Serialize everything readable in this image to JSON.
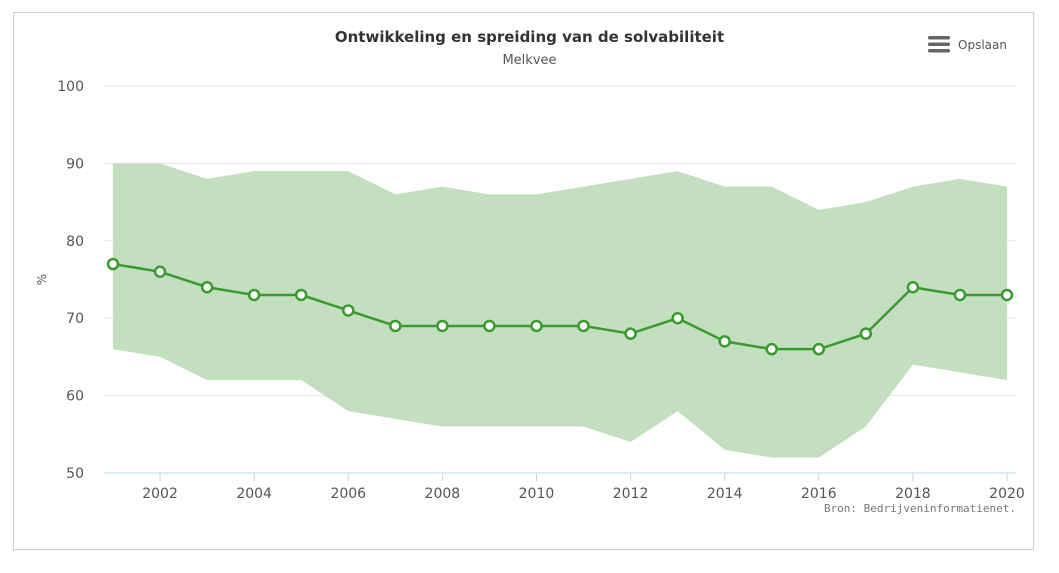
{
  "menu": {
    "label": "Opslaan",
    "icon": "hamburger-menu-icon"
  },
  "source_label": "Bron: Bedrijveninformatienet.",
  "colors": {
    "band": "#c3dfc0",
    "line": "#3a9a2f",
    "grid": "#e6e6e6",
    "axis": "#c0d4e4"
  },
  "chart_data": {
    "type": "line",
    "title": "Ontwikkeling en spreiding van de solvabiliteit",
    "subtitle": "Melkvee",
    "ylabel": "%",
    "xlabel": "",
    "ylim": [
      50,
      100
    ],
    "xlim": [
      2001,
      2020
    ],
    "y_ticks": [
      50,
      60,
      70,
      80,
      90,
      100
    ],
    "x_ticks": [
      2002,
      2004,
      2006,
      2008,
      2010,
      2012,
      2014,
      2016,
      2018,
      2020
    ],
    "grid": true,
    "x": [
      2001,
      2002,
      2003,
      2004,
      2005,
      2006,
      2007,
      2008,
      2009,
      2010,
      2011,
      2012,
      2013,
      2014,
      2015,
      2016,
      2017,
      2018,
      2019,
      2020
    ],
    "series": [
      {
        "kind": "range",
        "low": [
          66,
          65,
          62,
          62,
          62,
          58,
          57,
          56,
          56,
          56,
          56,
          54,
          58,
          53,
          52,
          52,
          56,
          64,
          63,
          62
        ],
        "high": [
          90,
          90,
          88,
          89,
          89,
          89,
          86,
          87,
          86,
          86,
          87,
          88,
          89,
          87,
          87,
          84,
          85,
          87,
          88,
          87
        ]
      },
      {
        "kind": "line",
        "values": [
          77,
          76,
          74,
          73,
          73,
          71,
          69,
          69,
          69,
          69,
          69,
          68,
          70,
          67,
          66,
          66,
          68,
          74,
          73,
          73
        ]
      }
    ]
  }
}
